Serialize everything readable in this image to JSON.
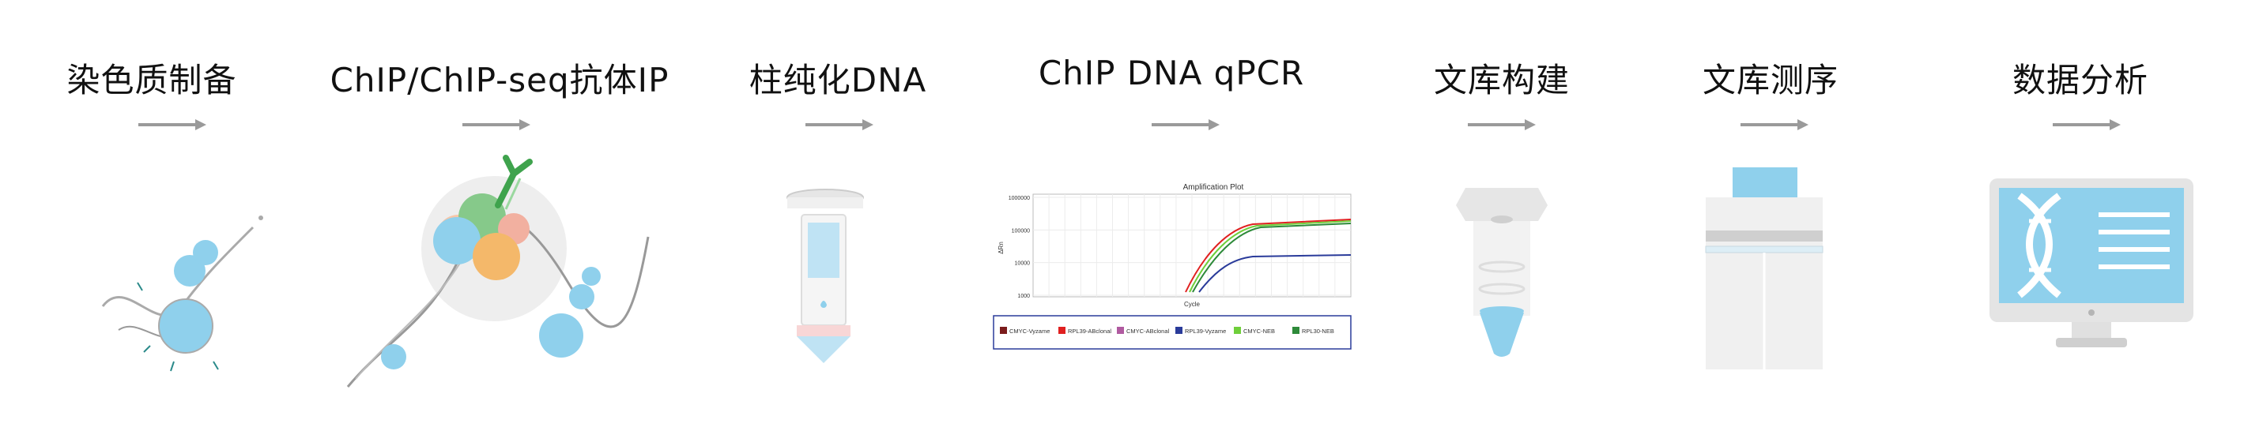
{
  "steps": [
    {
      "title": "染色质制备",
      "icon": "chromatin-icon"
    },
    {
      "title": "ChIP/ChIP-seq抗体IP",
      "icon": "antibody-ip-icon"
    },
    {
      "title": "柱纯化DNA",
      "icon": "spin-column-icon"
    },
    {
      "title": "ChIP DNA qPCR",
      "icon": "qpcr-plot-icon"
    },
    {
      "title": "文库构建",
      "icon": "library-tube-icon"
    },
    {
      "title": "文库测序",
      "icon": "sequencer-icon"
    },
    {
      "title": "数据分析",
      "icon": "monitor-dna-icon"
    }
  ],
  "qpcr_plot": {
    "title": "Amplification Plot",
    "xlabel": "Cycle",
    "ylabel": "ΔRn",
    "yticks": [
      "1000000",
      "100000",
      "10000",
      "1000"
    ],
    "legend": [
      "CMYC-Vyzame",
      "RPL39-ABclonal",
      "CMYC-ABclonal",
      "RPL39-Vyzame",
      "CMYC-NEB",
      "RPL30-NEB"
    ],
    "legend_colors": [
      "#7b1c1c",
      "#e02020",
      "#b05aa0",
      "#2a3b9a",
      "#6fcf3a",
      "#2e8a3a"
    ]
  }
}
